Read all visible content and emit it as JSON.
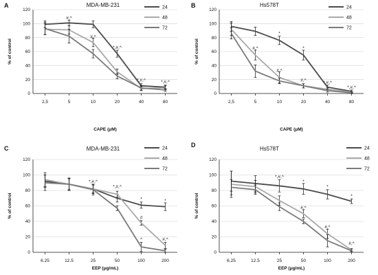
{
  "chart_data": [
    {
      "panel": "A",
      "type": "line",
      "title": "MDA-MB-231",
      "xlabel": "CAPE (μM)",
      "ylabel": "% of control",
      "categories": [
        "2,5",
        "5",
        "10",
        "20",
        "40",
        "80"
      ],
      "ylim": [
        0,
        120
      ],
      "yticks": [
        0,
        20,
        40,
        60,
        80,
        100,
        120
      ],
      "grid": true,
      "legend_position": "top-right",
      "series": [
        {
          "name": "24",
          "color": "#4a4a4a",
          "values": [
            99,
            101,
            99,
            57,
            11,
            9
          ],
          "errors": [
            5,
            4,
            5,
            5,
            3,
            3
          ]
        },
        {
          "name": "48",
          "color": "#a8a8a8",
          "values": [
            92,
            91,
            73,
            31,
            7,
            8
          ],
          "errors": [
            8,
            6,
            6,
            4,
            3,
            3
          ]
        },
        {
          "name": "72",
          "color": "#7a7a7a",
          "values": [
            93,
            82,
            57,
            25,
            8,
            5
          ],
          "errors": [
            9,
            10,
            6,
            4,
            3,
            2
          ]
        }
      ],
      "annotations": [
        {
          "x": "5",
          "y": 106,
          "text": "#,^"
        },
        {
          "x": "10",
          "y": 79,
          "text": "#,^"
        },
        {
          "x": "20",
          "y": 64,
          "text": "*,#,^"
        },
        {
          "x": "40",
          "y": 17,
          "text": "*,#,^"
        },
        {
          "x": "80",
          "y": 15,
          "text": "*,#,^"
        }
      ]
    },
    {
      "panel": "B",
      "type": "line",
      "title": "Hs578T",
      "xlabel": "CAPE (μM)",
      "ylabel": "% of control",
      "categories": [
        "2,5",
        "5",
        "10",
        "20",
        "40",
        "80"
      ],
      "ylim": [
        0,
        120
      ],
      "yticks": [
        0,
        20,
        40,
        60,
        80,
        100,
        120
      ],
      "grid": true,
      "legend_position": "top-right",
      "series": [
        {
          "name": "24",
          "color": "#4a4a4a",
          "values": [
            96,
            89,
            76,
            55,
            9,
            3
          ],
          "errors": [
            7,
            6,
            6,
            7,
            3,
            2
          ]
        },
        {
          "name": "48",
          "color": "#a8a8a8",
          "values": [
            92,
            55,
            23,
            11,
            6,
            2
          ],
          "errors": [
            9,
            7,
            8,
            3,
            2,
            1
          ]
        },
        {
          "name": "72",
          "color": "#7a7a7a",
          "values": [
            86,
            32,
            18,
            11,
            4,
            1
          ],
          "errors": [
            8,
            9,
            4,
            3,
            2,
            1
          ]
        }
      ],
      "annotations": [
        {
          "x": "5",
          "y": 63,
          "text": "#,^"
        },
        {
          "x": "10",
          "y": 84,
          "text": "*"
        },
        {
          "x": "10",
          "y": 31,
          "text": "#,^"
        },
        {
          "x": "20",
          "y": 63,
          "text": "*"
        },
        {
          "x": "20",
          "y": 17,
          "text": "#,^"
        },
        {
          "x": "40",
          "y": 14,
          "text": "*,#,^"
        },
        {
          "x": "80",
          "y": 7,
          "text": "*,#,^"
        }
      ]
    },
    {
      "panel": "C",
      "type": "line",
      "title": "MDA-MB-231",
      "xlabel": "EEP (μg/mL)",
      "ylabel": "% of control",
      "categories": [
        "6.25",
        "12.5",
        "25",
        "50",
        "100",
        "200"
      ],
      "ylim": [
        0,
        120
      ],
      "yticks": [
        0,
        20,
        40,
        60,
        80,
        100,
        120
      ],
      "grid": true,
      "legend_position": "top-right",
      "series": [
        {
          "name": "24",
          "color": "#4a4a4a",
          "values": [
            92,
            88,
            82,
            70,
            61,
            59
          ],
          "errors": [
            8,
            7,
            5,
            5,
            4,
            5
          ]
        },
        {
          "name": "48",
          "color": "#a8a8a8",
          "values": [
            94,
            88,
            82,
            75,
            38,
            9
          ],
          "errors": [
            9,
            8,
            6,
            4,
            3,
            4
          ]
        },
        {
          "name": "72",
          "color": "#7a7a7a",
          "values": [
            90,
            88,
            81,
            57,
            7,
            2
          ],
          "errors": [
            10,
            8,
            7,
            3,
            6,
            2
          ]
        }
      ],
      "annotations": [
        {
          "x": "25",
          "y": 90,
          "text": "*,#,^"
        },
        {
          "x": "50",
          "y": 83,
          "text": "*,#,^"
        },
        {
          "x": "100",
          "y": 67,
          "text": "*"
        },
        {
          "x": "100",
          "y": 43,
          "text": "#"
        },
        {
          "x": "100",
          "y": 15,
          "text": "^"
        },
        {
          "x": "200",
          "y": 65,
          "text": "*"
        },
        {
          "x": "200",
          "y": 15,
          "text": "#,^"
        }
      ]
    },
    {
      "panel": "D",
      "type": "line",
      "title": "Hs578T",
      "xlabel": "EEP (μg/mL)",
      "ylabel": "% of control",
      "categories": [
        "6.25",
        "12.5",
        "25",
        "50",
        "100",
        "200"
      ],
      "ylim": [
        0,
        120
      ],
      "yticks": [
        0,
        20,
        40,
        60,
        80,
        100,
        120
      ],
      "grid": true,
      "legend_position": "top-right",
      "series": [
        {
          "name": "24",
          "color": "#4a4a4a",
          "values": [
            92,
            89,
            86,
            82,
            75,
            66
          ],
          "errors": [
            13,
            10,
            8,
            7,
            6,
            3
          ]
        },
        {
          "name": "48",
          "color": "#a8a8a8",
          "values": [
            88,
            85,
            67,
            50,
            24,
            3
          ],
          "errors": [
            17,
            8,
            6,
            5,
            6,
            2
          ]
        },
        {
          "name": "72",
          "color": "#7a7a7a",
          "values": [
            84,
            81,
            59,
            40,
            15,
            2
          ],
          "errors": [
            10,
            6,
            5,
            3,
            8,
            1
          ]
        }
      ],
      "annotations": [
        {
          "x": "25",
          "y": 96,
          "text": "*,#,^"
        },
        {
          "x": "50",
          "y": 90,
          "text": "*"
        },
        {
          "x": "50",
          "y": 56,
          "text": "#,^"
        },
        {
          "x": "100",
          "y": 83,
          "text": "*"
        },
        {
          "x": "100",
          "y": 31,
          "text": "#,^"
        },
        {
          "x": "200",
          "y": 71,
          "text": "*"
        },
        {
          "x": "200",
          "y": 10,
          "text": "#,^"
        }
      ]
    }
  ]
}
